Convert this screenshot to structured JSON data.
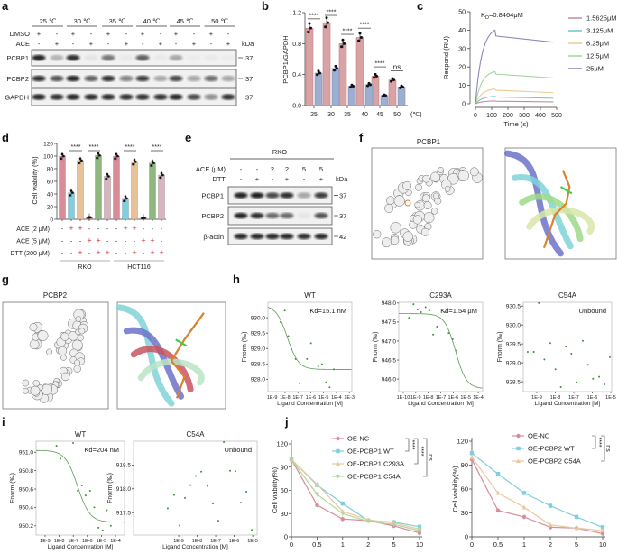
{
  "panels": {
    "a": "a",
    "b": "b",
    "c": "c",
    "d": "d",
    "e": "e",
    "f": "f",
    "g": "g",
    "h": "h",
    "i": "i",
    "j": "j"
  },
  "a": {
    "temps": [
      "25 ℃",
      "30 ℃",
      "35 ℃",
      "40 ℃",
      "45 ℃",
      "50 ℃"
    ],
    "rows": [
      {
        "label": "DMSO",
        "signs": [
          "+",
          "-",
          "+",
          "-",
          "+",
          "-",
          "+",
          "-",
          "+",
          "-",
          "+",
          "-"
        ]
      },
      {
        "label": "ACE",
        "signs": [
          "-",
          "+",
          "-",
          "+",
          "-",
          "+",
          "-",
          "+",
          "-",
          "+",
          "-",
          "+"
        ]
      }
    ],
    "kda_label": "kDa",
    "blots": [
      {
        "label": "PCBP1",
        "kda": "37",
        "intensity": [
          0.9,
          0.25,
          0.85,
          0.05,
          0.55,
          0.03,
          0.65,
          0.03,
          0.3,
          0.02,
          0.03,
          0.02
        ]
      },
      {
        "label": "PCBP2",
        "kda": "37",
        "intensity": [
          0.85,
          0.7,
          0.9,
          0.65,
          0.85,
          0.5,
          0.8,
          0.3,
          0.75,
          0.35,
          0.6,
          0.3
        ]
      },
      {
        "label": "GAPDH",
        "kda": "37",
        "intensity": [
          0.9,
          0.85,
          0.9,
          0.88,
          0.88,
          0.85,
          0.85,
          0.85,
          0.9,
          0.75,
          0.45,
          0.85
        ]
      }
    ]
  },
  "e": {
    "cell_line": "RKO",
    "rows": [
      {
        "label": "ACE (μM)",
        "signs": [
          "-",
          "-",
          "2",
          "2",
          "5",
          "5"
        ]
      },
      {
        "label": "DTT",
        "signs": [
          "-",
          "+",
          "-",
          "+",
          "-",
          "+"
        ]
      }
    ],
    "kda_label": "kDa",
    "blots": [
      {
        "label": "PCBP1",
        "kda": "37",
        "intensity": [
          0.9,
          0.92,
          0.75,
          0.85,
          0.35,
          0.8
        ]
      },
      {
        "label": "PCBP2",
        "kda": "37",
        "intensity": [
          0.9,
          0.85,
          0.6,
          0.6,
          0.05,
          0.7
        ]
      },
      {
        "label": "β-actin",
        "kda": "42",
        "intensity": [
          0.88,
          0.88,
          0.88,
          0.88,
          0.85,
          0.88
        ]
      }
    ]
  },
  "f": {
    "title": "PCBP1"
  },
  "g": {
    "title": "PCBP2"
  },
  "chart_data": [
    {
      "panel": "b",
      "type": "bar",
      "ylabel": "PCBP1/GAPDH",
      "xunit": "(℃)",
      "categories": [
        "25",
        "30",
        "35",
        "40",
        "45",
        "50"
      ],
      "ylim": [
        0,
        1.2
      ],
      "yticks": [
        "0.0",
        "0.4",
        "0.8",
        "1.2"
      ],
      "series": [
        {
          "values": [
            1.0,
            1.07,
            0.8,
            0.88,
            0.38,
            0.33
          ],
          "color": "#d9a3a6"
        },
        {
          "values": [
            0.42,
            0.48,
            0.25,
            0.27,
            0.13,
            0.24
          ],
          "color": "#9daed0"
        }
      ],
      "significance": [
        "****",
        "****",
        "****",
        "****",
        "****",
        "ns"
      ]
    },
    {
      "panel": "c",
      "type": "line",
      "ylabel": "Respond (RU)",
      "xlabel": "Time (s)",
      "kd_prefix": "K",
      "kd_sub": "D",
      "kd_value": "=0.8464μM",
      "xlim": [
        0,
        500
      ],
      "ylim": [
        0,
        50
      ],
      "xticks": [
        "0",
        "100",
        "200",
        "300",
        "400",
        "500"
      ],
      "yticks": [
        "0",
        "10",
        "20",
        "30",
        "40",
        "50"
      ],
      "injection_end_s": 120,
      "end_s": 480,
      "series": [
        {
          "name": "1.5625μM",
          "color": "#c98b9b",
          "peak": 1.5,
          "end": 1
        },
        {
          "name": "3.125μM",
          "color": "#6fc3d6",
          "peak": 4,
          "end": 3
        },
        {
          "name": "6.25μM",
          "color": "#efc98f",
          "peak": 8,
          "end": 6
        },
        {
          "name": "12.5μM",
          "color": "#a6d39a",
          "peak": 17.5,
          "end": 14
        },
        {
          "name": "25μM",
          "color": "#8f86b8",
          "peak": 40,
          "end": 33.5
        }
      ]
    },
    {
      "panel": "d",
      "type": "bar",
      "ylabel": "Cell viability (%)",
      "ylim": [
        0,
        120
      ],
      "yticks": [
        "0",
        "20",
        "40",
        "60",
        "80",
        "100",
        "120"
      ],
      "values": [
        100,
        42,
        93,
        3,
        101,
        68,
        100,
        33,
        91,
        2,
        89,
        70
      ],
      "colors": [
        "#d98c96",
        "#7fcfe0",
        "#e8c39a",
        "#d98c96",
        "#8fb87f",
        "#d9b3bd",
        "#d98c96",
        "#7fcfe0",
        "#e8c39a",
        "#d98c96",
        "#8fb87f",
        "#d9b3bd"
      ],
      "conditions": [
        {
          "label": "ACE (2 μM)",
          "signs": [
            "-",
            "+",
            "+",
            "-",
            "-",
            "-",
            "-",
            "+",
            "+",
            "-",
            "-",
            "-"
          ]
        },
        {
          "label": "ACE (5 μM)",
          "signs": [
            "-",
            "-",
            "-",
            "+",
            "+",
            "-",
            "-",
            "-",
            "-",
            "+",
            "+",
            "-"
          ]
        },
        {
          "label": "DTT (200 μM)",
          "signs": [
            "-",
            "-",
            "+",
            "-",
            "+",
            "+",
            "-",
            "-",
            "+",
            "-",
            "+",
            "+"
          ]
        }
      ],
      "groups": [
        "RKO",
        "HCT116"
      ],
      "significance": [
        {
          "pair": [
            1,
            2
          ],
          "label": "****"
        },
        {
          "pair": [
            3,
            4
          ],
          "label": "****"
        },
        {
          "pair": [
            7,
            8
          ],
          "label": "****"
        },
        {
          "pair": [
            10,
            11
          ],
          "label": "****"
        }
      ]
    },
    {
      "panel": "h",
      "type": "scatter",
      "title": "WT",
      "annotation": "Kd=15.1 nM",
      "xlabel": "Ligand Concentration [M]",
      "ylabel": "Fnorm (‰)",
      "xscale": "log",
      "xlim": [
        -9.33,
        -2.8
      ],
      "ylim": [
        927.6,
        930.5
      ],
      "xticks": [
        "1E-9",
        "1E-8",
        "1E-7",
        "1E-6",
        "1E-5",
        "1E-4",
        "1E-3"
      ],
      "yticks": [
        "928.0",
        "928.5",
        "929.0",
        "929.5",
        "930.0"
      ],
      "points_log10M": [
        [
          -8.35,
          929.86
        ],
        [
          -8.02,
          930.23
        ],
        [
          -7.75,
          929.4
        ],
        [
          -7.51,
          928.98
        ],
        [
          -7.18,
          928.66
        ],
        [
          -6.87,
          927.87
        ],
        [
          -6.29,
          928.66
        ],
        [
          -5.98,
          929.17
        ],
        [
          -5.42,
          928.42
        ],
        [
          -5.13,
          928.49
        ],
        [
          -4.8,
          927.9
        ],
        [
          -4.53,
          927.74
        ],
        [
          -4.2,
          928.32
        ]
      ],
      "fit": {
        "kd_M": 1.51e-08,
        "top": 930.4,
        "bottom": 928.32
      }
    },
    {
      "panel": "h",
      "type": "scatter",
      "title": "C293A",
      "annotation": "Kd=1.54 μM",
      "xlabel": "Ligand Concentration [M]",
      "ylabel": "Fnorm (‰)",
      "xscale": "log",
      "xlim": [
        -10.36,
        -3.64
      ],
      "ylim": [
        945.67,
        948.02
      ],
      "xticks": [
        "1E-10",
        "1E-9",
        "1E-8",
        "1E-7",
        "1E-6",
        "1E-5",
        "1E-4"
      ],
      "yticks": [
        "946.0",
        "946.5",
        "947.0",
        "947.5",
        "948.0"
      ],
      "points_log10M": [
        [
          -9.54,
          947.61
        ],
        [
          -9.18,
          947.97
        ],
        [
          -8.86,
          947.83
        ],
        [
          -8.58,
          947.76
        ],
        [
          -8.21,
          947.89
        ],
        [
          -7.92,
          947.8
        ],
        [
          -7.61,
          947.17
        ],
        [
          -7.3,
          947.38
        ],
        [
          -6.67,
          947.76
        ],
        [
          -6.36,
          947.21
        ],
        [
          -6.04,
          947.05
        ],
        [
          -5.73,
          946.75
        ]
      ],
      "fit": {
        "kd_M": 1.54e-06,
        "top": 947.72,
        "bottom": 945.75
      }
    },
    {
      "panel": "h",
      "type": "scatter",
      "title": "C54A",
      "annotation": "Unbound",
      "xlabel": "Ligand Concentration [M]",
      "ylabel": "Fnorm (‰)",
      "xscale": "log",
      "xlim": [
        -9.73,
        -4.95
      ],
      "ylim": [
        928.24,
        930.6
      ],
      "xticks": [
        "1E-9",
        "1E-8",
        "1E-7",
        "1E-6",
        "1E-5"
      ],
      "yticks": [
        "928.5",
        "929.0",
        "929.5",
        "930.0",
        "930.5"
      ],
      "points_log10M": [
        [
          -9.49,
          929.29
        ],
        [
          -9.16,
          929.29
        ],
        [
          -8.89,
          930.58
        ],
        [
          -8.59,
          929.09
        ],
        [
          -8.27,
          929.52
        ],
        [
          -7.99,
          928.83
        ],
        [
          -7.7,
          928.36
        ],
        [
          -7.42,
          929.43
        ],
        [
          -7.13,
          929.24
        ],
        [
          -6.84,
          928.48
        ],
        [
          -6.51,
          929.58
        ],
        [
          -6.23,
          928.95
        ],
        [
          -5.96,
          928.58
        ],
        [
          -5.63,
          928.63
        ],
        [
          -5.34,
          928.43
        ],
        [
          -5.05,
          929.15
        ]
      ]
    },
    {
      "panel": "i",
      "type": "scatter",
      "title": "WT",
      "annotation": "Kd=204 nM",
      "xlabel": "Ligand Concentration [M]",
      "ylabel": "Fnorm (‰)",
      "xscale": "log",
      "xlim": [
        -9.64,
        -3.36
      ],
      "ylim": [
        950.1,
        951.12
      ],
      "xticks": [
        "1E-9",
        "1E-8",
        "1E-7",
        "1E-6",
        "1E-5",
        "1E-4"
      ],
      "yticks": [
        "950.2",
        "950.4",
        "950.6",
        "950.8",
        "951.0"
      ],
      "points_log10M": [
        [
          -8.19,
          951.07
        ],
        [
          -7.9,
          950.93
        ],
        [
          -7.01,
          951.1
        ],
        [
          -6.69,
          950.58
        ],
        [
          -6.39,
          950.64
        ],
        [
          -6.12,
          950.53
        ],
        [
          -5.81,
          950.58
        ],
        [
          -5.51,
          950.4
        ],
        [
          -5.21,
          950.18
        ],
        [
          -4.91,
          950.15
        ],
        [
          -4.62,
          950.37
        ],
        [
          -4.33,
          950.2
        ]
      ],
      "fit": {
        "kd_M": 2.04e-07,
        "top": 951.02,
        "bottom": 950.24
      }
    },
    {
      "panel": "i",
      "type": "scatter",
      "title": "C54A",
      "annotation": "Unbound",
      "xlabel": "Ligand Concentration [M]",
      "ylabel": "Fnorm (‰)",
      "xscale": "log",
      "xlim": [
        -11.44,
        -4.76
      ],
      "ylim": [
        917.03,
        919.0
      ],
      "xticks": [
        "1E-9",
        "1E-8",
        "1E-7",
        "1E-6",
        "1E-5"
      ],
      "yticks": [
        "917.5",
        "918.0",
        "918.5"
      ],
      "points_log10M": [
        [
          -9.59,
          917.59
        ],
        [
          -9.25,
          917.87
        ],
        [
          -8.95,
          917.23
        ],
        [
          -8.66,
          917.81
        ],
        [
          -8.37,
          918.08
        ],
        [
          -8.07,
          918.27
        ],
        [
          -7.78,
          918.36
        ],
        [
          -7.44,
          918.06
        ],
        [
          -7.15,
          917.69
        ],
        [
          -6.86,
          917.33
        ],
        [
          -6.56,
          918.98
        ],
        [
          -6.22,
          918.38
        ],
        [
          -5.93,
          918.37
        ],
        [
          -5.64,
          917.71
        ],
        [
          -5.34,
          917.94
        ],
        [
          -5.05,
          917.14
        ]
      ]
    },
    {
      "panel": "j",
      "type": "line",
      "ylabel": "Cell viability(%)",
      "categories": [
        "0",
        "0.5",
        "1",
        "2",
        "5",
        "10"
      ],
      "ylim": [
        0,
        120
      ],
      "yticks": [
        "0",
        "30",
        "60",
        "90",
        "120"
      ],
      "series": [
        {
          "name": "OE-NC",
          "color": "#d98c9a",
          "marker": "circle",
          "values": [
            100,
            41,
            23,
            21,
            14,
            5
          ]
        },
        {
          "name": "OE-PCBP1 WT",
          "color": "#7fcfdc",
          "marker": "square",
          "values": [
            100,
            67,
            43,
            21,
            19,
            13
          ]
        },
        {
          "name": "OE-PCBP1 C293A",
          "color": "#e8c9a0",
          "marker": "triangle-up",
          "values": [
            100,
            68,
            33,
            22,
            18,
            10
          ]
        },
        {
          "name": "OE-PCBP1 C54A",
          "color": "#b5d69a",
          "marker": "triangle-down",
          "values": [
            100,
            55,
            30,
            20,
            16,
            8
          ]
        }
      ],
      "brackets": [
        {
          "to": 1,
          "label": "****"
        },
        {
          "to": 2,
          "label": "****"
        },
        {
          "to": 3,
          "label": "ns"
        }
      ]
    },
    {
      "panel": "j",
      "type": "line",
      "ylabel": "Cell viability(%)",
      "categories": [
        "0",
        "0.5",
        "1",
        "2",
        "5",
        "10"
      ],
      "ylim": [
        0,
        120
      ],
      "yticks": [
        "0",
        "30",
        "60",
        "90",
        "120"
      ],
      "series": [
        {
          "name": "OE-NC",
          "color": "#d98c9a",
          "marker": "circle",
          "values": [
            97,
            33,
            25,
            12,
            11,
            4
          ]
        },
        {
          "name": "OE-PCBP2 WT",
          "color": "#7fcfdc",
          "marker": "square",
          "values": [
            105,
            79,
            55,
            39,
            25,
            12
          ]
        },
        {
          "name": "OE-PCBP2 C54A",
          "color": "#e8c9a0",
          "marker": "triangle-up",
          "values": [
            100,
            55,
            37,
            15,
            11,
            8
          ]
        }
      ],
      "brackets": [
        {
          "to": 1,
          "label": "****"
        },
        {
          "to": 2,
          "label": "ns"
        }
      ]
    }
  ]
}
